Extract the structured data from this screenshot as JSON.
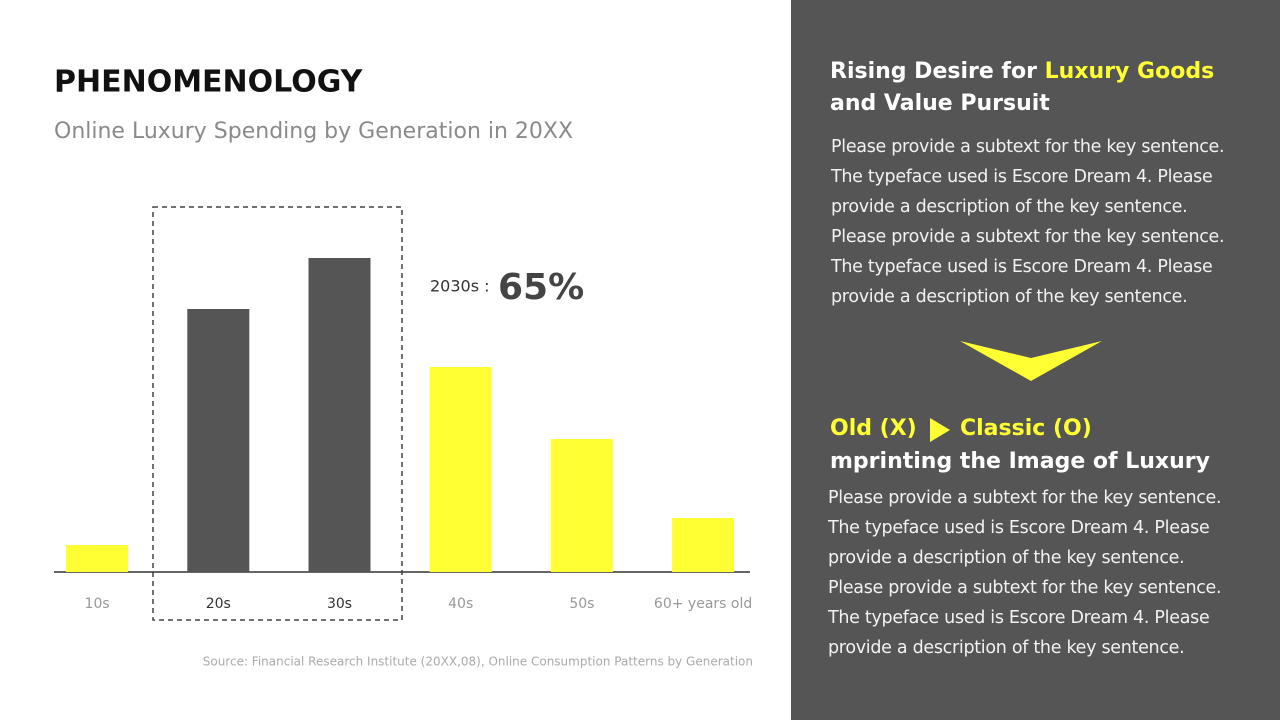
{
  "chart_data": {
    "type": "bar",
    "title": "PHENOMENOLOGY",
    "subtitle": "Online Luxury Spending by Generation in 20XX",
    "categories": [
      "10s",
      "20s",
      "30s",
      "40s",
      "50s",
      "60+ years old"
    ],
    "values": [
      27,
      263,
      314,
      205,
      133,
      54
    ],
    "colors": [
      "#ffff33",
      "#555555",
      "#555555",
      "#ffff33",
      "#ffff33",
      "#ffff33"
    ],
    "ylim": [
      0,
      340
    ],
    "annotation": {
      "label": "2030s :",
      "value": "65%"
    },
    "source": "Source: Financial Research Institute (20XX,08), Online Consumption Patterns by Generation"
  },
  "panel": {
    "heading1": {
      "text": "Rising Desire for",
      "highlight": "Luxury Goods",
      "line2": "and Value Pursuit"
    },
    "body1": [
      "Please provide a subtext for the key sentence.",
      "The typeface used is Escore Dream 4. Please",
      "provide a description of the key sentence.",
      "Please provide a subtext for the key sentence.",
      "The typeface used is Escore Dream 4. Please",
      "provide a description of the key sentence."
    ],
    "heading2": {
      "old": "Old (X)",
      "classic": "Classic (O)",
      "line2": "mprinting the Image of Luxury"
    },
    "body2": [
      "Please provide a subtext for the key sentence.",
      "The typeface used is Escore Dream 4. Please",
      "provide a description of the key sentence.",
      "Please provide a subtext for the key sentence.",
      "The typeface used is Escore Dream 4. Please",
      "provide a description of the key sentence."
    ]
  }
}
